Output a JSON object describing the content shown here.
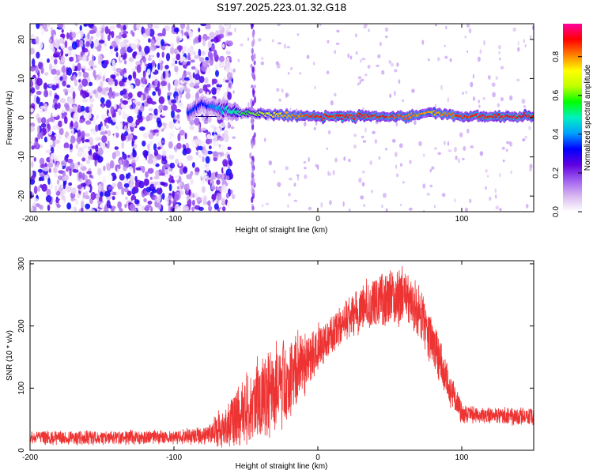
{
  "title": "S197.2025.223.01.32.G18",
  "chart_data": [
    {
      "type": "heatmap",
      "xlabel": "Height of straight line (km)",
      "ylabel": "Frequency (Hz)",
      "xlim": [
        -200,
        150
      ],
      "ylim": [
        -24,
        24
      ],
      "x_ticks": [
        -200,
        -100,
        0,
        100
      ],
      "x_tick_labels": [
        "-200",
        "-100",
        "0",
        "100"
      ],
      "y_ticks": [
        -20,
        -10,
        0,
        10,
        20
      ],
      "y_tick_labels": [
        "-20",
        "-10",
        "0",
        "10",
        "20"
      ],
      "colorbar": {
        "label": "Normalized spectral amplitude",
        "range": [
          0,
          0.97
        ],
        "ticks": [
          0,
          0.2,
          0.4,
          0.6,
          0.8
        ],
        "tick_labels": [
          "0.0",
          "0.2",
          "0.4",
          "0.6",
          "0.8"
        ],
        "colors": [
          "#ffffff",
          "#d8b8f0",
          "#a060f0",
          "#6000e0",
          "#0000ff",
          "#00a0ff",
          "#00f0c0",
          "#00ff00",
          "#c0ff00",
          "#ffff00",
          "#ff8000",
          "#ff0000",
          "#ff00a0"
        ]
      },
      "signal": [
        {
          "x": -90,
          "freq": 1.2,
          "amp": 0.35
        },
        {
          "x": -80,
          "freq": 3.5,
          "amp": 0.3
        },
        {
          "x": -70,
          "freq": 2.5,
          "amp": 0.4
        },
        {
          "x": -60,
          "freq": 1.6,
          "amp": 0.5
        },
        {
          "x": -50,
          "freq": 1.3,
          "amp": 0.55
        },
        {
          "x": -40,
          "freq": 1.0,
          "amp": 0.65
        },
        {
          "x": -30,
          "freq": 0.8,
          "amp": 0.75
        },
        {
          "x": -20,
          "freq": 0.6,
          "amp": 0.8
        },
        {
          "x": -10,
          "freq": 0.4,
          "amp": 0.85
        },
        {
          "x": 0,
          "freq": 0.3,
          "amp": 0.9
        },
        {
          "x": 20,
          "freq": 0.3,
          "amp": 0.9
        },
        {
          "x": 40,
          "freq": 0.4,
          "amp": 0.9
        },
        {
          "x": 60,
          "freq": 0.3,
          "amp": 0.85
        },
        {
          "x": 80,
          "freq": 1.3,
          "amp": 0.8
        },
        {
          "x": 100,
          "freq": 0.4,
          "amp": 0.88
        },
        {
          "x": 120,
          "freq": 0.3,
          "amp": 0.9
        },
        {
          "x": 150,
          "freq": 0.3,
          "amp": 0.9
        }
      ]
    },
    {
      "type": "line",
      "xlabel": "Height of straight line (km)",
      "ylabel": "SNR (10 * v/v)",
      "xlim": [
        -200,
        150
      ],
      "ylim": [
        0,
        305
      ],
      "x_ticks": [
        -200,
        -100,
        0,
        100
      ],
      "x_tick_labels": [
        "-200",
        "-100",
        "0",
        "100"
      ],
      "y_ticks": [
        0,
        100,
        200,
        300
      ],
      "y_tick_labels": [
        "0",
        "100",
        "200",
        "300"
      ],
      "series": [
        {
          "color": "#ee3333",
          "envelope_x": [
            -200,
            -150,
            -100,
            -80,
            -70,
            -60,
            -50,
            -40,
            -30,
            -20,
            -10,
            0,
            10,
            20,
            30,
            40,
            50,
            60,
            70,
            80,
            90,
            100,
            110,
            120,
            130,
            140,
            150
          ],
          "envelope_mean": [
            20,
            20,
            21,
            23,
            30,
            45,
            65,
            85,
            100,
            115,
            140,
            165,
            185,
            210,
            230,
            240,
            245,
            248,
            225,
            175,
            110,
            60,
            55,
            55,
            55,
            55,
            55
          ],
          "envelope_spread": [
            12,
            12,
            12,
            15,
            28,
            45,
            60,
            70,
            75,
            70,
            55,
            40,
            35,
            35,
            40,
            45,
            50,
            50,
            45,
            40,
            35,
            20,
            15,
            15,
            15,
            15,
            15
          ]
        }
      ]
    }
  ]
}
